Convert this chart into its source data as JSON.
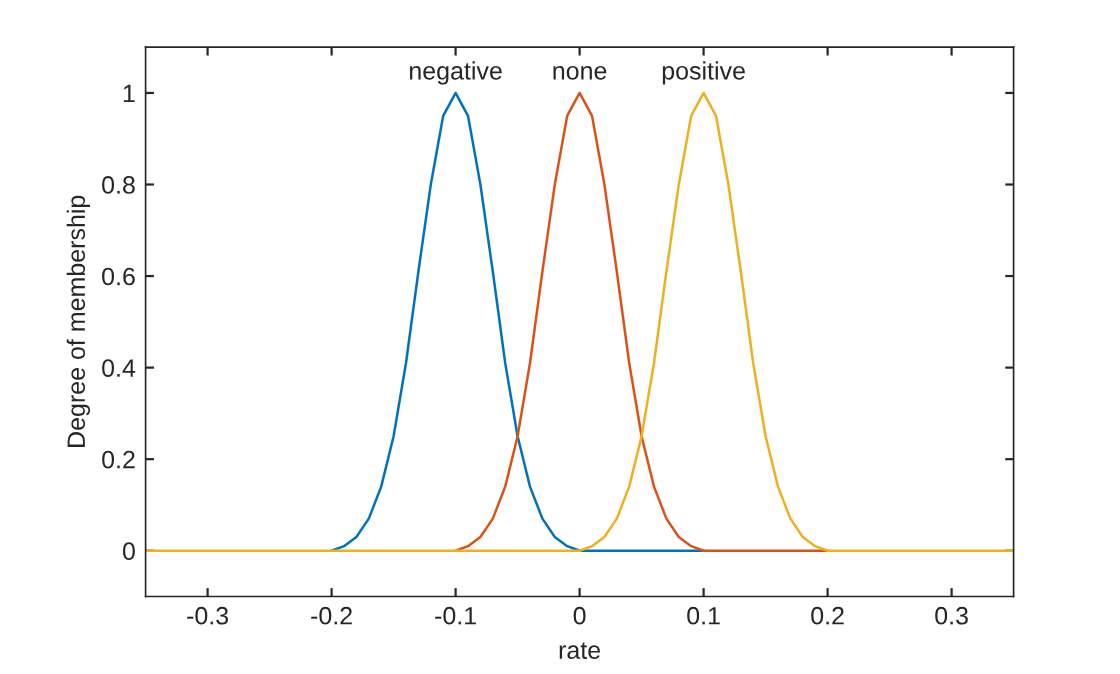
{
  "chart_data": {
    "type": "line",
    "xlabel": "rate",
    "ylabel": "Degree of membership",
    "x": [
      -0.35,
      -0.34,
      -0.33,
      -0.32,
      -0.31,
      -0.3,
      -0.29,
      -0.28,
      -0.27,
      -0.26,
      -0.25,
      -0.24,
      -0.23,
      -0.22,
      -0.21,
      -0.2,
      -0.19,
      -0.18,
      -0.17,
      -0.16,
      -0.15,
      -0.14,
      -0.13,
      -0.12,
      -0.11,
      -0.1,
      -0.09,
      -0.08,
      -0.07,
      -0.06,
      -0.05,
      -0.04,
      -0.03,
      -0.02,
      -0.01,
      0,
      0.01,
      0.02,
      0.03,
      0.04,
      0.05,
      0.06,
      0.07,
      0.08,
      0.09,
      0.1,
      0.11,
      0.12,
      0.13,
      0.14,
      0.15,
      0.16,
      0.17,
      0.18,
      0.19,
      0.2,
      0.21,
      0.22,
      0.23,
      0.24,
      0.25,
      0.26,
      0.27,
      0.28,
      0.29,
      0.3,
      0.31,
      0.32,
      0.33,
      0.34,
      0.35
    ],
    "series": [
      {
        "color": "#0072bd",
        "values": [
          null,
          null,
          null,
          null,
          null,
          null,
          null,
          null,
          null,
          null,
          null,
          null,
          null,
          null,
          null,
          0,
          0.01,
          0.03,
          0.07,
          0.14,
          0.25,
          0.41,
          0.61,
          0.8,
          0.95,
          1,
          0.95,
          0.8,
          0.61,
          0.41,
          0.25,
          0.14,
          0.07,
          0.03,
          0.01,
          0,
          0,
          0,
          0,
          0,
          0,
          0,
          0,
          0,
          0,
          0,
          null,
          null,
          null,
          null,
          null,
          null,
          null,
          null,
          null,
          null,
          null,
          null,
          null,
          null,
          null,
          null,
          null,
          null,
          null,
          null,
          null,
          null,
          null,
          null,
          null
        ]
      },
      {
        "color": "#d95319",
        "values": [
          null,
          null,
          null,
          null,
          null,
          null,
          null,
          null,
          null,
          null,
          null,
          null,
          null,
          null,
          null,
          null,
          null,
          null,
          null,
          null,
          null,
          null,
          null,
          null,
          null,
          0,
          0.01,
          0.03,
          0.07,
          0.14,
          0.25,
          0.41,
          0.61,
          0.8,
          0.95,
          1,
          0.95,
          0.8,
          0.61,
          0.41,
          0.25,
          0.14,
          0.07,
          0.03,
          0.01,
          0,
          0,
          0,
          0,
          0,
          0,
          0,
          0,
          0,
          0,
          0,
          null,
          null,
          null,
          null,
          null,
          null,
          null,
          null,
          null,
          null,
          null,
          null,
          null,
          null,
          null
        ]
      },
      {
        "color": "#edb120",
        "values": [
          0,
          0,
          0,
          0,
          0,
          0,
          0,
          0,
          0,
          0,
          0,
          0,
          0,
          0,
          0,
          0,
          0,
          0,
          0,
          0,
          0,
          0,
          0,
          0,
          0,
          0,
          0,
          0,
          0,
          0,
          0,
          0,
          0,
          0,
          0,
          0,
          0.01,
          0.03,
          0.07,
          0.14,
          0.25,
          0.41,
          0.61,
          0.8,
          0.95,
          1,
          0.95,
          0.8,
          0.61,
          0.41,
          0.25,
          0.14,
          0.07,
          0.03,
          0.01,
          0,
          0,
          0,
          0,
          0,
          0,
          0,
          0,
          0,
          0,
          0,
          0,
          0,
          0,
          0,
          0
        ]
      }
    ],
    "annotations": [
      {
        "text": "negative",
        "x": -0.1,
        "y": 1
      },
      {
        "text": "none",
        "x": 0,
        "y": 1
      },
      {
        "text": "positive",
        "x": 0.1,
        "y": 1
      }
    ],
    "xlim": [
      -0.35,
      0.35
    ],
    "xticks": [
      -0.3,
      -0.2,
      -0.1,
      0,
      0.1,
      0.2,
      0.3
    ],
    "ylim": [
      -0.1,
      1.1
    ],
    "yticks": [
      0,
      0.2,
      0.4,
      0.6,
      0.8,
      1
    ],
    "grid": false,
    "legend": false,
    "marker": "none",
    "line_style": "solid"
  }
}
